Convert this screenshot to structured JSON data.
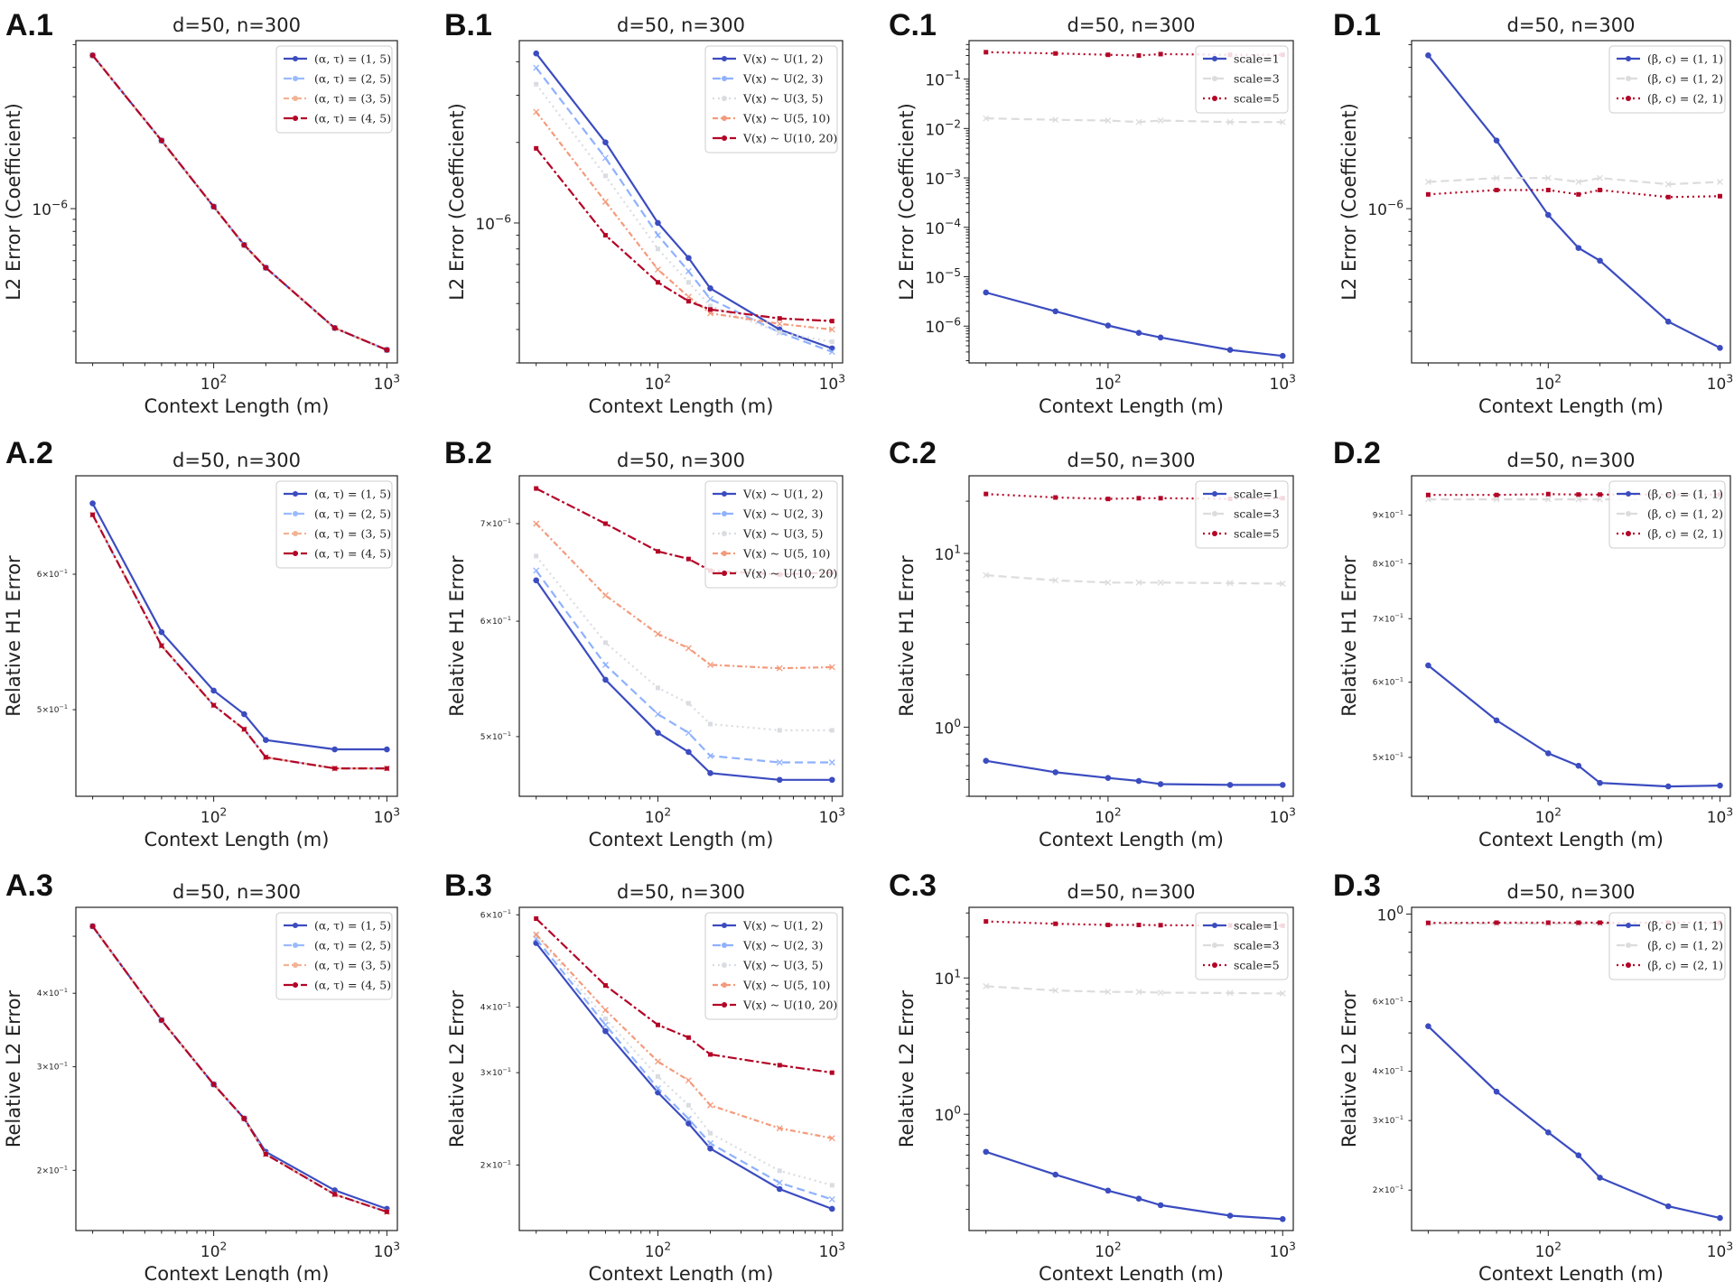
{
  "colors": {
    "series": [
      "#3b4cc0",
      "#9abbff",
      "#f2b395",
      "#b40426"
    ],
    "series3": [
      "#3b4cc0",
      "#dddcdc",
      "#b40426"
    ],
    "series5": [
      "#3b4cc0",
      "#8fb1fe",
      "#d9dce1",
      "#f49a7b",
      "#b40426"
    ]
  },
  "chart_data": [
    {
      "panel": "A.1",
      "type": "line",
      "title": "d=50, n=300",
      "xlabel": "Context Length (m)",
      "ylabel": "L2 Error (Coefficient)",
      "x": [
        20,
        50,
        100,
        150,
        200,
        500,
        1000
      ],
      "xticks": [
        "10^2",
        "10^3"
      ],
      "yticks": [
        "10^-6"
      ],
      "xlim": [
        16,
        1150
      ],
      "ylim": [
        2.2e-07,
        5.2e-06
      ],
      "yscale": "log",
      "legend_loc": "upper right",
      "series": [
        {
          "name": "(α, τ) = (1, 5)",
          "style": "solid",
          "values": [
            4.5e-06,
            1.95e-06,
            1.02e-06,
            7e-07,
            5.6e-07,
            3.1e-07,
            2.5e-07
          ]
        },
        {
          "name": "(α, τ) = (2, 5)",
          "style": "dashed",
          "values": [
            4.5e-06,
            1.95e-06,
            1.02e-06,
            7e-07,
            5.6e-07,
            3.1e-07,
            2.5e-07
          ]
        },
        {
          "name": "(α, τ) = (3, 5)",
          "style": "dotdash",
          "values": [
            4.5e-06,
            1.95e-06,
            1.02e-06,
            7e-07,
            5.6e-07,
            3.1e-07,
            2.5e-07
          ]
        },
        {
          "name": "(α, τ) = (4, 5)",
          "style": "dashdot",
          "values": [
            4.5e-06,
            1.95e-06,
            1.02e-06,
            7e-07,
            5.6e-07,
            3.1e-07,
            2.5e-07
          ]
        }
      ]
    },
    {
      "panel": "B.1",
      "type": "line",
      "title": "d=50, n=300",
      "xlabel": "Context Length (m)",
      "ylabel": "L2 Error (Coefficient)",
      "x": [
        20,
        50,
        100,
        150,
        200,
        500,
        1000
      ],
      "xticks": [
        "10^2",
        "10^3"
      ],
      "yticks": [
        "10^-6"
      ],
      "xlim": [
        16,
        1150
      ],
      "ylim": [
        3e-07,
        4.8e-06
      ],
      "yscale": "log",
      "legend_loc": "upper right",
      "series": [
        {
          "name": "V(x) ~ U(1, 2)",
          "style": "solid",
          "values": [
            4.3e-06,
            2e-06,
            1e-06,
            7.4e-07,
            5.7e-07,
            4e-07,
            3.4e-07
          ]
        },
        {
          "name": "V(x) ~ U(2, 3)",
          "style": "dashed",
          "values": [
            3.8e-06,
            1.75e-06,
            9e-07,
            6.6e-07,
            5.2e-07,
            3.9e-07,
            3.3e-07
          ]
        },
        {
          "name": "V(x) ~ U(3, 5)",
          "style": "dotted",
          "values": [
            3.3e-06,
            1.5e-06,
            8e-07,
            6e-07,
            4.9e-07,
            3.9e-07,
            3.6e-07
          ]
        },
        {
          "name": "V(x) ~ U(5, 10)",
          "style": "dotdash",
          "values": [
            2.6e-06,
            1.2e-06,
            6.7e-07,
            5.3e-07,
            4.6e-07,
            4.2e-07,
            4e-07
          ]
        },
        {
          "name": "V(x) ~ U(10, 20)",
          "style": "dashdot",
          "values": [
            1.9e-06,
            9e-07,
            6e-07,
            5.1e-07,
            4.75e-07,
            4.4e-07,
            4.3e-07
          ]
        }
      ]
    },
    {
      "panel": "C.1",
      "type": "line",
      "title": "d=50, n=300",
      "xlabel": "Context Length (m)",
      "ylabel": "L2 Error (Coefficient)",
      "x": [
        20,
        50,
        100,
        150,
        200,
        500,
        1000
      ],
      "xticks": [
        "10^2",
        "10^3"
      ],
      "yticks": [
        "10^-6",
        "10^-5",
        "10^-4",
        "10^-3",
        "10^-2",
        "10^-1"
      ],
      "xlim": [
        16,
        1150
      ],
      "ylim": [
        1.8e-07,
        0.6
      ],
      "yscale": "log",
      "legend_loc": "upper right",
      "series": [
        {
          "name": "scale=1",
          "style": "solid",
          "values": [
            4.8e-06,
            2e-06,
            1.03e-06,
            7.3e-07,
            5.9e-07,
            3.3e-07,
            2.5e-07
          ]
        },
        {
          "name": "scale=3",
          "style": "dashed",
          "values": [
            0.016,
            0.015,
            0.0145,
            0.0135,
            0.0145,
            0.0135,
            0.0135
          ]
        },
        {
          "name": "scale=5",
          "style": "dotted",
          "values": [
            0.35,
            0.33,
            0.31,
            0.3,
            0.32,
            0.31,
            0.31
          ]
        }
      ]
    },
    {
      "panel": "D.1",
      "type": "line",
      "title": "d=50, n=300",
      "xlabel": "Context Length (m)",
      "ylabel": "L2 Error (Coefficient)",
      "x": [
        20,
        50,
        100,
        150,
        200,
        500,
        1000
      ],
      "xticks": [
        "10^2",
        "10^3"
      ],
      "yticks": [
        "10^-6"
      ],
      "xlim": [
        16,
        1150
      ],
      "ylim": [
        2.2e-07,
        5.2e-06
      ],
      "yscale": "log",
      "legend_loc": "upper right",
      "series": [
        {
          "name": "(β, c) = (1, 1)",
          "style": "solid",
          "values": [
            4.5e-06,
            1.95e-06,
            9.4e-07,
            6.8e-07,
            6e-07,
            3.3e-07,
            2.55e-07
          ]
        },
        {
          "name": "(β, c) = (1, 2)",
          "style": "dashed",
          "values": [
            1.3e-06,
            1.35e-06,
            1.35e-06,
            1.3e-06,
            1.35e-06,
            1.27e-06,
            1.3e-06
          ]
        },
        {
          "name": "(β, c) = (2, 1)",
          "style": "dotted",
          "values": [
            1.15e-06,
            1.2e-06,
            1.2e-06,
            1.15e-06,
            1.2e-06,
            1.12e-06,
            1.13e-06
          ]
        }
      ]
    },
    {
      "panel": "A.2",
      "type": "line",
      "title": "d=50, n=300",
      "xlabel": "Context Length (m)",
      "ylabel": "Relative H1 Error",
      "x": [
        20,
        50,
        100,
        150,
        200,
        500,
        1000
      ],
      "xticks": [
        "10^2",
        "10^3"
      ],
      "yticks": [
        "6×10^-1",
        "5×10^-1"
      ],
      "xlim": [
        16,
        1150
      ],
      "ylim": [
        0.445,
        0.685
      ],
      "yscale": "log",
      "legend_loc": "upper right",
      "series": [
        {
          "name": "(α, τ) = (1, 5)",
          "style": "solid",
          "values": [
            0.66,
            0.555,
            0.513,
            0.497,
            0.48,
            0.474,
            0.474
          ]
        },
        {
          "name": "(α, τ) = (2, 5)",
          "style": "dashed",
          "values": [
            0.65,
            0.545,
            0.503,
            0.487,
            0.469,
            0.462,
            0.462
          ]
        },
        {
          "name": "(α, τ) = (3, 5)",
          "style": "dotdash",
          "values": [
            0.65,
            0.545,
            0.503,
            0.487,
            0.469,
            0.462,
            0.462
          ]
        },
        {
          "name": "(α, τ) = (4, 5)",
          "style": "dashdot",
          "values": [
            0.65,
            0.545,
            0.503,
            0.487,
            0.469,
            0.462,
            0.462
          ]
        }
      ]
    },
    {
      "panel": "B.2",
      "type": "line",
      "title": "d=50, n=300",
      "xlabel": "Context Length (m)",
      "ylabel": "Relative H1 Error",
      "x": [
        20,
        50,
        100,
        150,
        200,
        500,
        1000
      ],
      "xticks": [
        "10^2",
        "10^3"
      ],
      "yticks": [
        "7×10^-1",
        "6×10^-1",
        "5×10^-1"
      ],
      "xlim": [
        16,
        1150
      ],
      "ylim": [
        0.455,
        0.755
      ],
      "yscale": "log",
      "legend_loc": "upper right",
      "series": [
        {
          "name": "V(x) ~ U(1, 2)",
          "style": "solid",
          "values": [
            0.64,
            0.547,
            0.503,
            0.488,
            0.472,
            0.467,
            0.467
          ]
        },
        {
          "name": "V(x) ~ U(2, 3)",
          "style": "dashed",
          "values": [
            0.65,
            0.56,
            0.518,
            0.503,
            0.485,
            0.48,
            0.48
          ]
        },
        {
          "name": "V(x) ~ U(3, 5)",
          "style": "dotted",
          "values": [
            0.665,
            0.58,
            0.54,
            0.527,
            0.51,
            0.505,
            0.505
          ]
        },
        {
          "name": "V(x) ~ U(5, 10)",
          "style": "dotdash",
          "values": [
            0.7,
            0.625,
            0.588,
            0.575,
            0.56,
            0.557,
            0.558
          ]
        },
        {
          "name": "V(x) ~ U(10, 20)",
          "style": "dashdot",
          "values": [
            0.74,
            0.7,
            0.67,
            0.662,
            0.65,
            0.646,
            0.648
          ]
        }
      ]
    },
    {
      "panel": "C.2",
      "type": "line",
      "title": "d=50, n=300",
      "xlabel": "Context Length (m)",
      "ylabel": "Relative H1 Error",
      "x": [
        20,
        50,
        100,
        150,
        200,
        500,
        1000
      ],
      "xticks": [
        "10^2",
        "10^3"
      ],
      "yticks": [
        "10^1",
        "10^0"
      ],
      "xlim": [
        16,
        1150
      ],
      "ylim": [
        0.4,
        28
      ],
      "yscale": "log",
      "legend_loc": "upper right",
      "series": [
        {
          "name": "scale=1",
          "style": "solid",
          "values": [
            0.64,
            0.55,
            0.51,
            0.49,
            0.47,
            0.465,
            0.465
          ]
        },
        {
          "name": "scale=3",
          "style": "dashed",
          "values": [
            7.5,
            7.0,
            6.8,
            6.8,
            6.8,
            6.75,
            6.7
          ]
        },
        {
          "name": "scale=5",
          "style": "dotted",
          "values": [
            22,
            21,
            20.6,
            20.8,
            20.8,
            20.6,
            20.8
          ]
        }
      ]
    },
    {
      "panel": "D.2",
      "type": "line",
      "title": "d=50, n=300",
      "xlabel": "Context Length (m)",
      "ylabel": "Relative H1 Error",
      "x": [
        20,
        50,
        100,
        150,
        200,
        500,
        1000
      ],
      "xticks": [
        "10^2",
        "10^3"
      ],
      "yticks": [
        "9×10^-1",
        "8×10^-1",
        "7×10^-1",
        "6×10^-1",
        "5×10^-1"
      ],
      "xlim": [
        16,
        1150
      ],
      "ylim": [
        0.455,
        0.99
      ],
      "yscale": "log",
      "legend_loc": "upper right",
      "series": [
        {
          "name": "(β, c) = (1, 1)",
          "style": "solid",
          "values": [
            0.625,
            0.547,
            0.505,
            0.49,
            0.47,
            0.466,
            0.467
          ]
        },
        {
          "name": "(β, c) = (1, 2)",
          "style": "dashed",
          "values": [
            0.935,
            0.935,
            0.935,
            0.935,
            0.935,
            0.935,
            0.935
          ]
        },
        {
          "name": "(β, c) = (2, 1)",
          "style": "dotted",
          "values": [
            0.945,
            0.945,
            0.947,
            0.946,
            0.946,
            0.946,
            0.946
          ]
        }
      ]
    },
    {
      "panel": "A.3",
      "type": "line",
      "title": "d=50, n=300",
      "xlabel": "Context Length (m)",
      "ylabel": "Relative L2 Error",
      "x": [
        20,
        50,
        100,
        150,
        200,
        500,
        1000
      ],
      "xticks": [
        "10^2",
        "10^3"
      ],
      "yticks": [
        "4×10^-1",
        "3×10^-1",
        "2×10^-1"
      ],
      "xlim": [
        16,
        1150
      ],
      "ylim": [
        0.158,
        0.56
      ],
      "yscale": "log",
      "legend_loc": "upper right",
      "series": [
        {
          "name": "(α, τ) = (1, 5)",
          "style": "solid",
          "values": [
            0.52,
            0.36,
            0.28,
            0.245,
            0.215,
            0.185,
            0.172
          ]
        },
        {
          "name": "(α, τ) = (2, 5)",
          "style": "dashed",
          "values": [
            0.52,
            0.36,
            0.28,
            0.245,
            0.213,
            0.182,
            0.17
          ]
        },
        {
          "name": "(α, τ) = (3, 5)",
          "style": "dotdash",
          "values": [
            0.52,
            0.36,
            0.28,
            0.245,
            0.213,
            0.182,
            0.17
          ]
        },
        {
          "name": "(α, τ) = (4, 5)",
          "style": "dashdot",
          "values": [
            0.52,
            0.36,
            0.28,
            0.245,
            0.213,
            0.182,
            0.17
          ]
        }
      ]
    },
    {
      "panel": "B.3",
      "type": "line",
      "title": "d=50, n=300",
      "xlabel": "Context Length (m)",
      "ylabel": "Relative L2 Error",
      "x": [
        20,
        50,
        100,
        150,
        200,
        500,
        1000
      ],
      "xticks": [
        "10^2",
        "10^3"
      ],
      "yticks": [
        "6×10^-1",
        "4×10^-1",
        "3×10^-1",
        "2×10^-1"
      ],
      "xlim": [
        16,
        1150
      ],
      "ylim": [
        0.15,
        0.62
      ],
      "yscale": "log",
      "legend_loc": "upper right",
      "series": [
        {
          "name": "V(x) ~ U(1, 2)",
          "style": "solid",
          "values": [
            0.53,
            0.36,
            0.275,
            0.24,
            0.215,
            0.18,
            0.165
          ]
        },
        {
          "name": "V(x) ~ U(2, 3)",
          "style": "dashed",
          "values": [
            0.54,
            0.37,
            0.28,
            0.245,
            0.22,
            0.185,
            0.172
          ]
        },
        {
          "name": "V(x) ~ U(3, 5)",
          "style": "dotted",
          "values": [
            0.55,
            0.38,
            0.295,
            0.26,
            0.23,
            0.195,
            0.183
          ]
        },
        {
          "name": "V(x) ~ U(5, 10)",
          "style": "dotdash",
          "values": [
            0.55,
            0.395,
            0.315,
            0.29,
            0.26,
            0.235,
            0.225
          ]
        },
        {
          "name": "V(x) ~ U(10, 20)",
          "style": "dashdot",
          "values": [
            0.59,
            0.44,
            0.37,
            0.35,
            0.325,
            0.31,
            0.3
          ]
        }
      ]
    },
    {
      "panel": "C.3",
      "type": "line",
      "title": "d=50, n=300",
      "xlabel": "Context Length (m)",
      "ylabel": "Relative L2 Error",
      "x": [
        20,
        50,
        100,
        150,
        200,
        500,
        1000
      ],
      "xticks": [
        "10^2",
        "10^3"
      ],
      "yticks": [
        "10^1",
        "10^0"
      ],
      "xlim": [
        16,
        1150
      ],
      "ylim": [
        0.14,
        33
      ],
      "yscale": "log",
      "legend_loc": "upper right",
      "series": [
        {
          "name": "scale=1",
          "style": "solid",
          "values": [
            0.53,
            0.36,
            0.275,
            0.24,
            0.215,
            0.18,
            0.17
          ]
        },
        {
          "name": "scale=3",
          "style": "dashed",
          "values": [
            8.7,
            8.1,
            7.9,
            7.9,
            7.8,
            7.75,
            7.7
          ]
        },
        {
          "name": "scale=5",
          "style": "dotted",
          "values": [
            26,
            25,
            24.5,
            24.5,
            24.4,
            24.3,
            24.2
          ]
        }
      ]
    },
    {
      "panel": "D.3",
      "type": "line",
      "title": "d=50, n=300",
      "xlabel": "Context Length (m)",
      "ylabel": "Relative L2 Error",
      "x": [
        20,
        50,
        100,
        150,
        200,
        500,
        1000
      ],
      "xticks": [
        "10^2",
        "10^3"
      ],
      "yticks": [
        "10^0",
        "6×10^-1",
        "4×10^-1",
        "3×10^-1",
        "2×10^-1"
      ],
      "xlim": [
        16,
        1150
      ],
      "ylim": [
        0.158,
        1.04
      ],
      "yscale": "log",
      "legend_loc": "upper right",
      "series": [
        {
          "name": "(β, c) = (1, 1)",
          "style": "solid",
          "values": [
            0.52,
            0.355,
            0.28,
            0.245,
            0.215,
            0.182,
            0.17
          ]
        },
        {
          "name": "(β, c) = (1, 2)",
          "style": "dashed",
          "values": [
            0.945,
            0.946,
            0.946,
            0.946,
            0.946,
            0.946,
            0.946
          ]
        },
        {
          "name": "(β, c) = (2, 1)",
          "style": "dotted",
          "values": [
            0.95,
            0.951,
            0.951,
            0.951,
            0.951,
            0.951,
            0.951
          ]
        }
      ]
    }
  ]
}
